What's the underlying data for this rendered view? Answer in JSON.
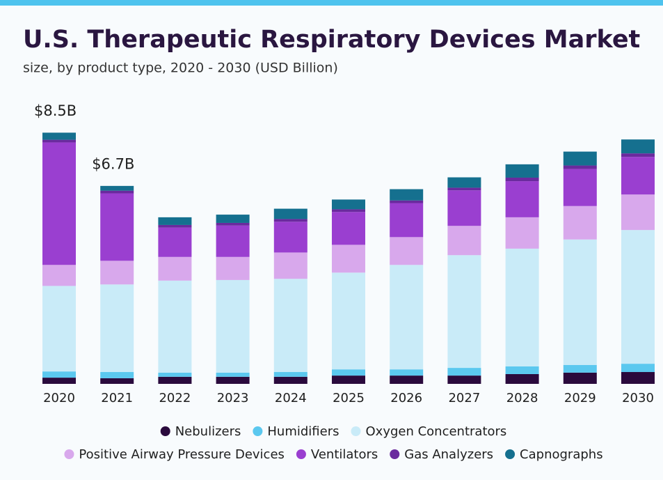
{
  "chart_data": {
    "type": "stacked_bar",
    "title": "U.S. Therapeutic Respiratory Devices Market",
    "subtitle": "size, by product type, 2020 - 2030 (USD Billion)",
    "categories": [
      "2020",
      "2021",
      "2022",
      "2023",
      "2024",
      "2025",
      "2026",
      "2027",
      "2028",
      "2029",
      "2030"
    ],
    "ylim": [
      0,
      8.5
    ],
    "series": [
      {
        "name": "Nebulizers",
        "color": "#2a0a3d",
        "values": [
          0.21,
          0.19,
          0.24,
          0.24,
          0.24,
          0.28,
          0.28,
          0.28,
          0.33,
          0.38,
          0.4
        ]
      },
      {
        "name": "Humidifiers",
        "color": "#5bc8ef",
        "values": [
          0.21,
          0.21,
          0.14,
          0.14,
          0.16,
          0.21,
          0.21,
          0.26,
          0.26,
          0.26,
          0.28
        ]
      },
      {
        "name": "Oxygen Concentrators",
        "color": "#c9ebf8",
        "values": [
          2.89,
          2.96,
          3.11,
          3.13,
          3.15,
          3.27,
          3.53,
          3.81,
          3.98,
          4.24,
          4.52
        ]
      },
      {
        "name": "Positive Airway Pressure Devices",
        "color": "#d8a8ec",
        "values": [
          0.71,
          0.8,
          0.8,
          0.78,
          0.89,
          0.94,
          0.94,
          0.99,
          1.06,
          1.13,
          1.2
        ]
      },
      {
        "name": "Ventilators",
        "color": "#9a3fd0",
        "values": [
          4.14,
          2.28,
          0.99,
          1.06,
          1.04,
          1.11,
          1.15,
          1.2,
          1.22,
          1.25,
          1.27
        ]
      },
      {
        "name": "Gas Analyzers",
        "color": "#6a2a9e",
        "values": [
          0.09,
          0.09,
          0.09,
          0.09,
          0.09,
          0.09,
          0.09,
          0.09,
          0.12,
          0.12,
          0.12
        ]
      },
      {
        "name": "Capnographs",
        "color": "#15708f",
        "values": [
          0.24,
          0.16,
          0.26,
          0.28,
          0.35,
          0.33,
          0.38,
          0.35,
          0.45,
          0.47,
          0.47
        ]
      }
    ],
    "annotations": [
      {
        "category": "2020",
        "value": 8.5,
        "label": "$8.5B"
      },
      {
        "category": "2021",
        "value": 6.7,
        "label": "$6.7B"
      }
    ]
  }
}
